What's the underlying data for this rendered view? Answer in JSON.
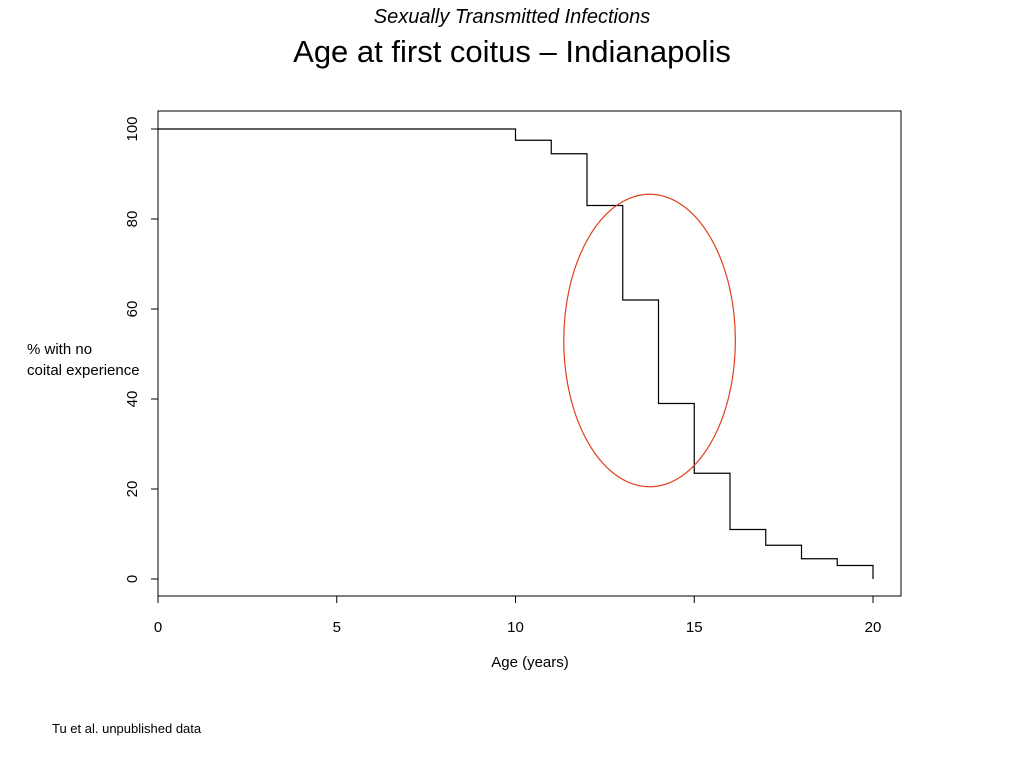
{
  "slide": {
    "subtitle": "Sexually Transmitted Infections",
    "title": "Age at first coitus – Indianapolis",
    "footnote": "Tu et al. unpublished data"
  },
  "chart_data": {
    "type": "line",
    "step": true,
    "xlabel": "Age (years)",
    "ylabel_lines": [
      "% with no",
      "coital experience"
    ],
    "xlim": [
      0,
      20
    ],
    "ylim": [
      0,
      100
    ],
    "xticks": [
      0,
      5,
      10,
      15,
      20
    ],
    "yticks": [
      0,
      20,
      40,
      60,
      80,
      100
    ],
    "grid": false,
    "series": [
      {
        "x": [
          0,
          10,
          11,
          12,
          13,
          14,
          15,
          16,
          17,
          18,
          19,
          20
        ],
        "y": [
          100,
          97.5,
          94.5,
          83,
          62,
          39,
          23.5,
          11,
          7.5,
          4.5,
          3,
          0
        ]
      }
    ],
    "annotation": {
      "shape": "ellipse",
      "color": "#e0401f",
      "center": {
        "x": 13.75,
        "y": 53
      },
      "radius": {
        "x": 2.4,
        "y": 32.5
      }
    }
  }
}
